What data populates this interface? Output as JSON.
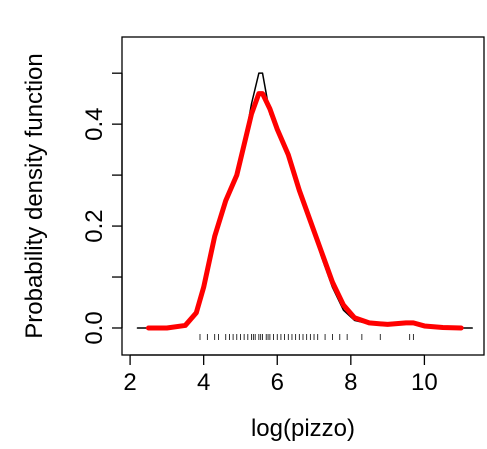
{
  "chart_data": {
    "type": "line",
    "xlabel": "log(pizzo)",
    "ylabel": "Probability density function",
    "xlim": [
      1.78,
      11.62
    ],
    "ylim": [
      -0.053,
      0.571
    ],
    "xticks": [
      2,
      4,
      6,
      8,
      10
    ],
    "yticks": [
      {
        "value": 0,
        "label": "0.0"
      },
      {
        "value": 0.2,
        "label": "0.2"
      },
      {
        "value": 0.4,
        "label": "0.4"
      }
    ],
    "yminor_ticks": [
      0.1,
      0.3,
      0.5
    ],
    "series": [
      {
        "color": "#000000",
        "width": 1.5,
        "x": [
          2.2,
          3.0,
          3.5,
          3.8,
          4.0,
          4.3,
          4.6,
          4.9,
          5.1,
          5.3,
          5.5,
          5.6,
          5.7,
          5.8,
          6.0,
          6.3,
          6.6,
          6.9,
          7.2,
          7.5,
          7.8,
          8.1,
          8.5,
          9.0,
          9.5,
          9.7,
          10.0,
          10.5,
          11.3
        ],
        "values": [
          0,
          0,
          0.003,
          0.03,
          0.08,
          0.18,
          0.25,
          0.3,
          0.36,
          0.44,
          0.5,
          0.5,
          0.46,
          0.42,
          0.39,
          0.34,
          0.27,
          0.21,
          0.14,
          0.08,
          0.035,
          0.015,
          0.008,
          0.006,
          0.01,
          0.012,
          0.003,
          0,
          0
        ]
      },
      {
        "color": "#ff0000",
        "width": 5,
        "x": [
          2.5,
          3.0,
          3.5,
          3.8,
          4.0,
          4.3,
          4.6,
          4.9,
          5.1,
          5.3,
          5.5,
          5.6,
          5.8,
          6.0,
          6.3,
          6.6,
          6.9,
          7.2,
          7.5,
          7.8,
          8.1,
          8.5,
          9.0,
          9.5,
          9.7,
          10.0,
          10.5,
          11.0
        ],
        "values": [
          0,
          0,
          0.005,
          0.03,
          0.08,
          0.18,
          0.25,
          0.3,
          0.36,
          0.42,
          0.46,
          0.46,
          0.43,
          0.39,
          0.34,
          0.27,
          0.21,
          0.15,
          0.09,
          0.045,
          0.02,
          0.01,
          0.007,
          0.01,
          0.01,
          0.004,
          0.001,
          0
        ]
      }
    ],
    "rug": [
      3.9,
      4.1,
      4.3,
      4.4,
      4.6,
      4.7,
      4.8,
      4.9,
      5.0,
      5.1,
      5.2,
      5.3,
      5.35,
      5.4,
      5.5,
      5.55,
      5.6,
      5.7,
      5.75,
      5.8,
      5.9,
      6.0,
      6.1,
      6.2,
      6.3,
      6.4,
      6.5,
      6.6,
      6.7,
      6.8,
      6.9,
      7.0,
      7.1,
      7.3,
      7.5,
      7.7,
      7.9,
      8.3,
      8.8,
      9.6,
      9.7
    ]
  }
}
